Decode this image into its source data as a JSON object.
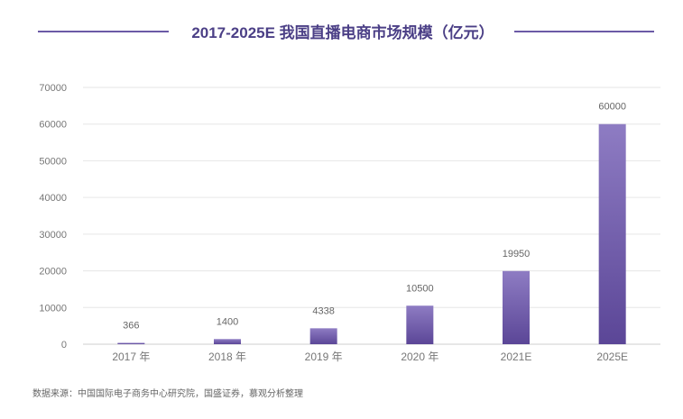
{
  "chart_data": {
    "type": "bar",
    "title": "2017-2025E 我国直播电商市场规模（亿元）",
    "xlabel": "",
    "ylabel": "",
    "categories": [
      "2017 年",
      "2018 年",
      "2019 年",
      "2020 年",
      "2021E",
      "2025E"
    ],
    "values": [
      366,
      1400,
      4338,
      10500,
      19950,
      60000
    ],
    "data_labels": [
      "366",
      "1400",
      "4338",
      "10500",
      "19950",
      "60000"
    ],
    "ylim": [
      0,
      70000
    ],
    "yticks": [
      0,
      10000,
      20000,
      30000,
      40000,
      50000,
      60000,
      70000
    ],
    "ytick_labels": [
      "0",
      "10000",
      "20000",
      "30000",
      "40000",
      "50000",
      "60000",
      "70000"
    ],
    "grid": true,
    "legend": "none",
    "bar_color_top": "#8e7cc3",
    "bar_color_bottom": "#5b4697"
  },
  "source_note": "数据来源：中国国际电子商务中心研究院，国盛证券，慕观分析整理"
}
